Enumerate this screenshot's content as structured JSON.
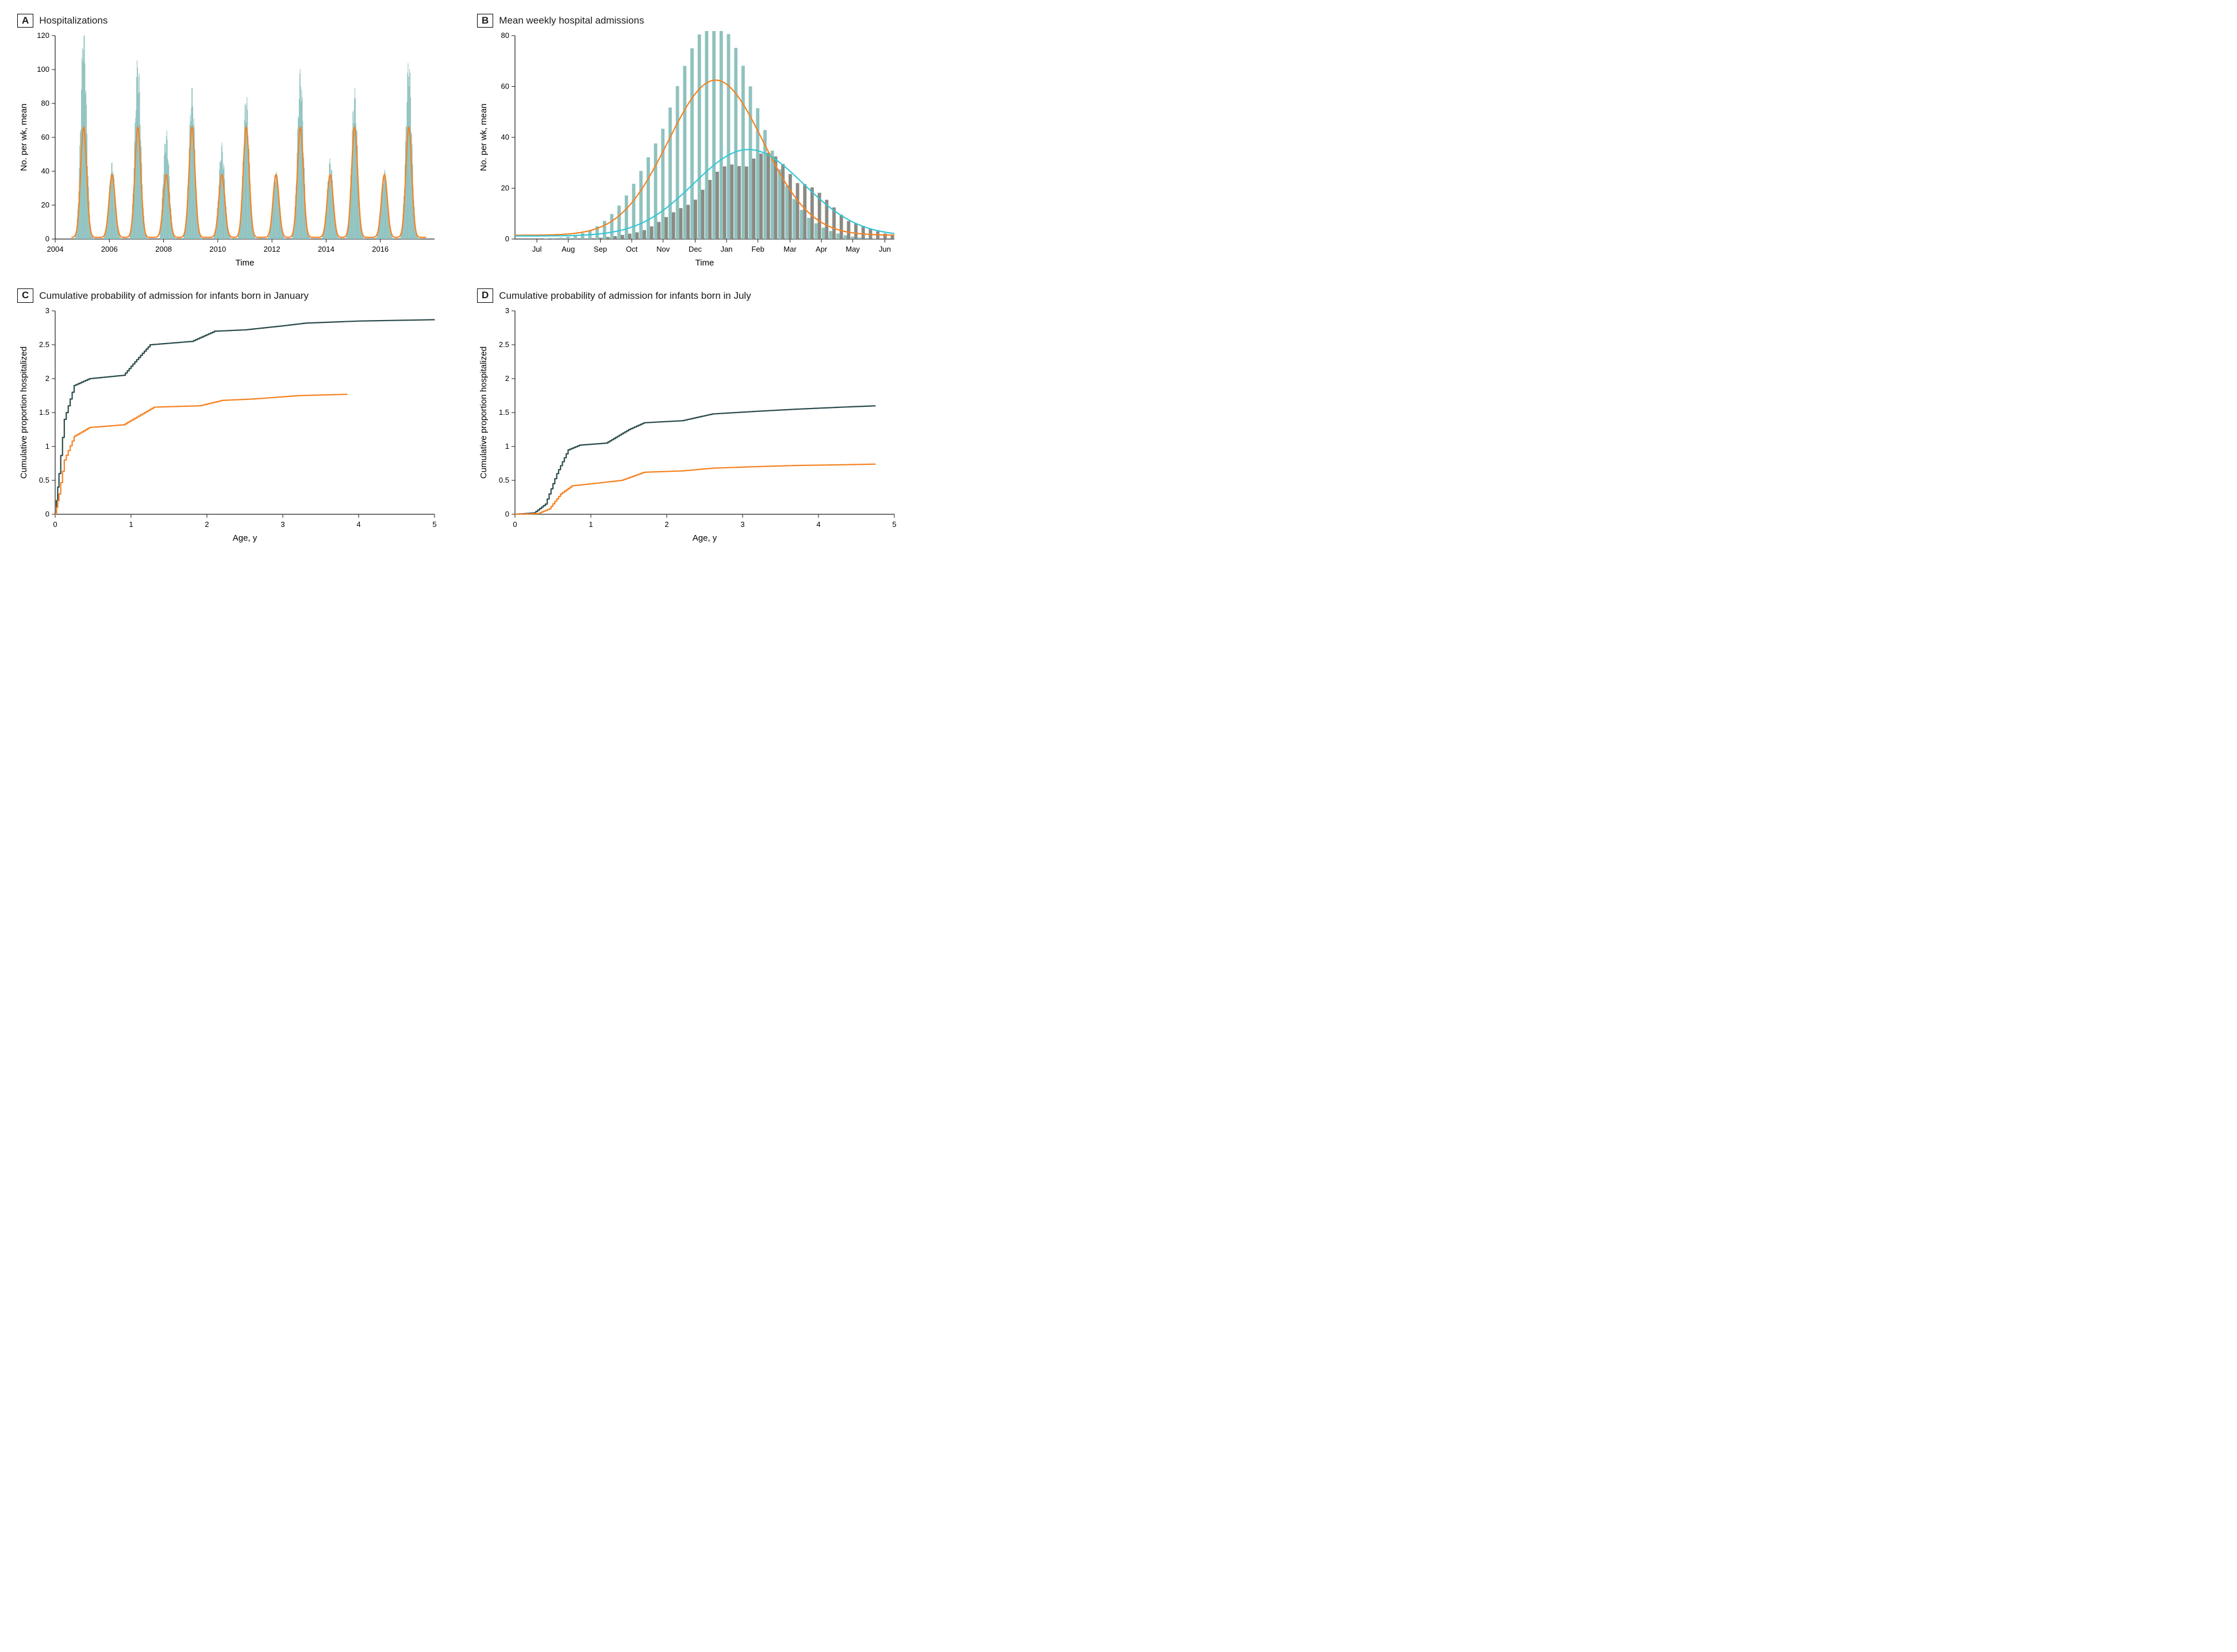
{
  "global": {
    "background": "#ffffff",
    "font_family": "Arial, Helvetica, sans-serif",
    "axis_color": "#1a1a1a",
    "axis_stroke_width": 1.2,
    "tick_fontsize": 13,
    "axis_title_fontsize": 15,
    "panel_title_fontsize": 17
  },
  "panels": {
    "A": {
      "badge": "A",
      "title": "Hospitalizations",
      "type": "bar+line",
      "xlabel": "Time",
      "ylabel": "No. per wk, mean",
      "xlim": [
        2004,
        2018
      ],
      "ylim": [
        0,
        120
      ],
      "ytick_step": 20,
      "xticks": [
        2004,
        2006,
        2008,
        2010,
        2012,
        2014,
        2016
      ],
      "bar_color": "#8fc2bf",
      "bar_edge": "#8fc2bf",
      "line_color": "#f58220",
      "line_width": 2.2,
      "grid": false,
      "bars": {
        "x_start": 2004.6,
        "x_step_weeks": 0.01923,
        "peaks": [
          {
            "center": 2005.05,
            "amp": 114,
            "start": 2004.75
          },
          {
            "center": 2006.1,
            "amp": 41,
            "start": 2005.8
          },
          {
            "center": 2007.05,
            "amp": 97,
            "start": 2006.75
          },
          {
            "center": 2008.1,
            "amp": 58,
            "start": 2007.85
          },
          {
            "center": 2009.05,
            "amp": 81,
            "start": 2008.75
          },
          {
            "center": 2010.15,
            "amp": 51,
            "start": 2009.85
          },
          {
            "center": 2011.05,
            "amp": 78,
            "start": 2010.75
          },
          {
            "center": 2012.15,
            "amp": 37,
            "start": 2011.85
          },
          {
            "center": 2013.05,
            "amp": 91,
            "start": 2012.75
          },
          {
            "center": 2014.15,
            "amp": 43,
            "start": 2013.85
          },
          {
            "center": 2015.05,
            "amp": 80,
            "start": 2014.75
          },
          {
            "center": 2016.15,
            "amp": 37,
            "start": 2015.85
          },
          {
            "center": 2017.05,
            "amp": 97,
            "start": 2016.75
          }
        ],
        "peak_sigma_weeks": 0.11
      },
      "model_line": {
        "peaks": [
          {
            "center": 2005.05,
            "amp": 65
          },
          {
            "center": 2006.1,
            "amp": 37
          },
          {
            "center": 2007.05,
            "amp": 65
          },
          {
            "center": 2008.1,
            "amp": 37
          },
          {
            "center": 2009.05,
            "amp": 65
          },
          {
            "center": 2010.15,
            "amp": 37
          },
          {
            "center": 2011.05,
            "amp": 65
          },
          {
            "center": 2012.15,
            "amp": 37
          },
          {
            "center": 2013.05,
            "amp": 65
          },
          {
            "center": 2014.15,
            "amp": 37
          },
          {
            "center": 2015.05,
            "amp": 65
          },
          {
            "center": 2016.15,
            "amp": 37
          },
          {
            "center": 2017.05,
            "amp": 65
          }
        ],
        "sigma": 0.11,
        "baseline": 1.0
      }
    },
    "B": {
      "badge": "B",
      "title": "Mean weekly hospital admissions",
      "type": "bar2+line2",
      "xlabel": "Time",
      "ylabel": "No. per wk, mean",
      "xlim": [
        0,
        52
      ],
      "ylim": [
        0,
        80
      ],
      "ytick_step": 20,
      "xticks_labels": [
        "Jul",
        "Aug",
        "Sep",
        "Oct",
        "Nov",
        "Dec",
        "Jan",
        "Feb",
        "Mar",
        "Apr",
        "May",
        "Jun"
      ],
      "xticks_positions": [
        3,
        7.3,
        11.7,
        16,
        20.3,
        24.7,
        29,
        33.3,
        37.7,
        42,
        46.3,
        50.7
      ],
      "grid": false,
      "series1": {
        "label": "series-orange",
        "bar_color": "#8fc2bf",
        "line_color": "#f58220",
        "line_width": 2.2,
        "bar_center": 26.5,
        "bar_amp": 79,
        "bar_sigma": 6.5,
        "line_center": 27.5,
        "line_amp": 61,
        "line_sigma": 6.5,
        "line_baseline": 1.5
      },
      "series2": {
        "label": "series-cyan",
        "bar_color": "#8a8a82",
        "line_color": "#33c6d6",
        "line_width": 2.2,
        "bar_center": 32.5,
        "bar_amp": 31.5,
        "bar_sigma": 7.5,
        "line_center": 32.0,
        "line_amp": 34,
        "line_sigma": 7.5,
        "line_baseline": 1.2
      },
      "bar_gap": 0.08
    },
    "C": {
      "badge": "C",
      "title": "Cumulative probability of admission for infants born in January",
      "type": "step2",
      "xlabel": "Age, y",
      "ylabel": "Cumulative proportion hospitalized",
      "xlim": [
        0,
        5
      ],
      "ylim": [
        0,
        3.0
      ],
      "ytick_step": 0.5,
      "xtick_step": 1,
      "line_width": 2.2,
      "series": [
        {
          "color": "#2b4b4b",
          "points": [
            [
              0,
              0
            ],
            [
              0.05,
              0.6
            ],
            [
              0.12,
              1.4
            ],
            [
              0.25,
              1.9
            ],
            [
              0.45,
              2.0
            ],
            [
              0.9,
              2.05
            ],
            [
              1.05,
              2.25
            ],
            [
              1.25,
              2.5
            ],
            [
              1.8,
              2.55
            ],
            [
              2.1,
              2.7
            ],
            [
              2.5,
              2.72
            ],
            [
              3.0,
              2.78
            ],
            [
              3.3,
              2.82
            ],
            [
              4.0,
              2.85
            ],
            [
              5.0,
              2.87
            ]
          ]
        },
        {
          "color": "#f58220",
          "points": [
            [
              0,
              0
            ],
            [
              0.05,
              0.3
            ],
            [
              0.12,
              0.8
            ],
            [
              0.25,
              1.15
            ],
            [
              0.45,
              1.28
            ],
            [
              0.9,
              1.32
            ],
            [
              1.1,
              1.45
            ],
            [
              1.3,
              1.58
            ],
            [
              1.9,
              1.6
            ],
            [
              2.2,
              1.68
            ],
            [
              2.6,
              1.7
            ],
            [
              3.2,
              1.75
            ],
            [
              3.85,
              1.77
            ]
          ]
        }
      ]
    },
    "D": {
      "badge": "D",
      "title": "Cumulative probability of admission for infants born in July",
      "type": "step2",
      "xlabel": "Age, y",
      "ylabel": "Cumulative proportion hospitalized",
      "xlim": [
        0,
        5
      ],
      "ylim": [
        0,
        3.0
      ],
      "ytick_step": 0.5,
      "xtick_step": 1,
      "line_width": 2.2,
      "series": [
        {
          "color": "#2b4b4b",
          "points": [
            [
              0,
              0
            ],
            [
              0.25,
              0.02
            ],
            [
              0.4,
              0.15
            ],
            [
              0.55,
              0.6
            ],
            [
              0.7,
              0.95
            ],
            [
              0.85,
              1.02
            ],
            [
              1.2,
              1.05
            ],
            [
              1.5,
              1.25
            ],
            [
              1.7,
              1.35
            ],
            [
              2.2,
              1.38
            ],
            [
              2.6,
              1.48
            ],
            [
              3.2,
              1.52
            ],
            [
              3.7,
              1.55
            ],
            [
              4.3,
              1.58
            ],
            [
              4.75,
              1.6
            ]
          ]
        },
        {
          "color": "#f58220",
          "points": [
            [
              0,
              0
            ],
            [
              0.3,
              0.01
            ],
            [
              0.45,
              0.08
            ],
            [
              0.6,
              0.3
            ],
            [
              0.75,
              0.42
            ],
            [
              1.0,
              0.45
            ],
            [
              1.4,
              0.5
            ],
            [
              1.7,
              0.62
            ],
            [
              2.2,
              0.64
            ],
            [
              2.6,
              0.68
            ],
            [
              3.1,
              0.7
            ],
            [
              3.7,
              0.72
            ],
            [
              4.3,
              0.73
            ],
            [
              4.75,
              0.74
            ]
          ]
        }
      ]
    }
  }
}
